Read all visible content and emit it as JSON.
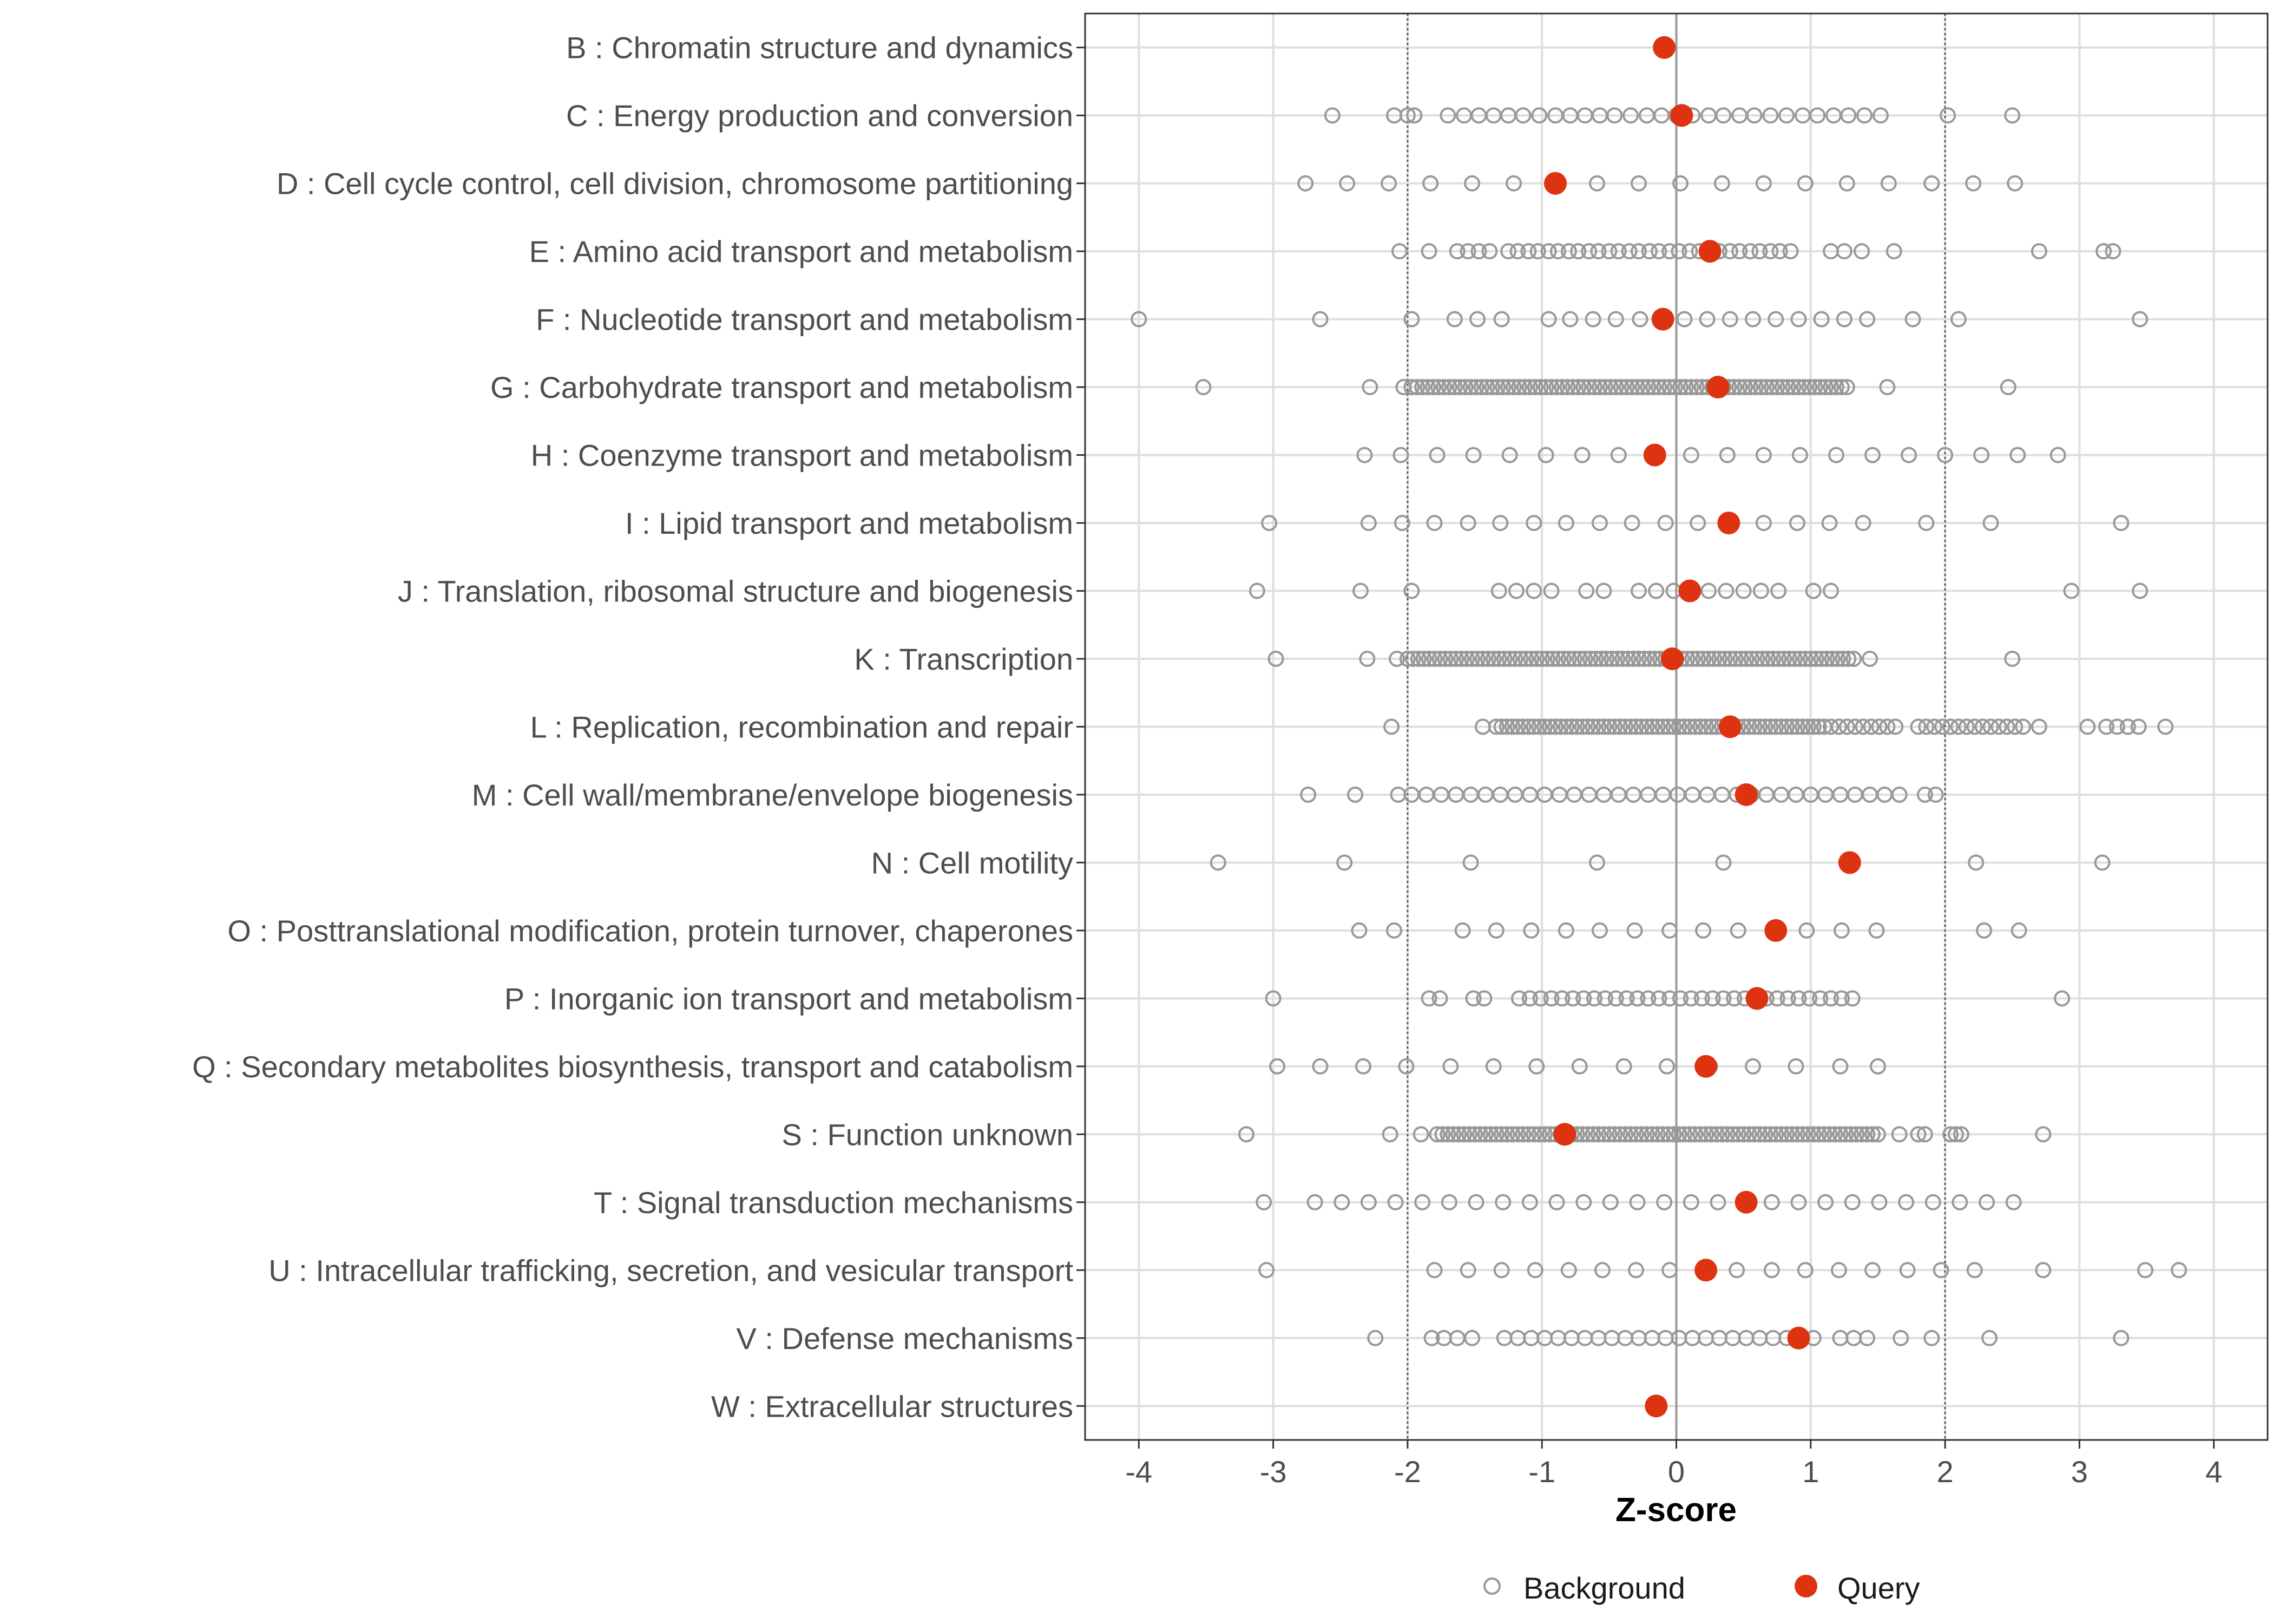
{
  "chart_data": {
    "type": "scatter",
    "xlabel": "Z-score",
    "xlim": [
      -4.4,
      4.4
    ],
    "x_ticks": [
      "-4",
      "-3",
      "-2",
      "-1",
      "0",
      "1",
      "2",
      "3",
      "4"
    ],
    "reference_lines": [
      -2,
      0,
      2
    ],
    "legend": {
      "position": "bottom",
      "entries": [
        {
          "name": "Background",
          "marker": "hollow-circle"
        },
        {
          "name": "Query",
          "marker": "filled-circle"
        }
      ]
    },
    "colors": {
      "background": "#999999",
      "query": "#dd3311",
      "grid": "#dedede",
      "zero_line": "#999999"
    },
    "categories": [
      {
        "label": "B : Chromatin structure and dynamics",
        "query": -0.09,
        "background": []
      },
      {
        "label": "C : Energy production and conversion",
        "query": 0.04,
        "background": [
          -2.56,
          -2.1,
          -2.0,
          -1.95,
          -1.7,
          -1.58,
          -1.47,
          -1.36,
          -1.25,
          -1.14,
          -1.02,
          -0.9,
          -0.79,
          -0.68,
          -0.57,
          -0.46,
          -0.34,
          -0.22,
          -0.11,
          0.0,
          0.12,
          0.24,
          0.35,
          0.47,
          0.58,
          0.7,
          0.82,
          0.94,
          1.05,
          1.17,
          1.28,
          1.4,
          1.52,
          2.02,
          2.5
        ]
      },
      {
        "label": "D : Cell cycle control, cell division, chromosome partitioning",
        "query": -0.9,
        "background": [
          -2.76,
          -2.45,
          -2.14,
          -1.83,
          -1.52,
          -1.21,
          -0.9,
          -0.59,
          -0.28,
          0.03,
          0.34,
          0.65,
          0.96,
          1.27,
          1.58,
          1.9,
          2.21,
          2.52
        ]
      },
      {
        "label": "E : Amino acid transport and metabolism",
        "query": 0.25,
        "background": [
          -2.06,
          -1.84,
          -1.63,
          -1.55,
          -1.47,
          -1.39,
          -1.25,
          -1.18,
          -1.1,
          -1.03,
          -0.95,
          -0.88,
          -0.8,
          -0.73,
          -0.65,
          -0.58,
          -0.5,
          -0.43,
          -0.35,
          -0.28,
          -0.2,
          -0.13,
          -0.05,
          0.02,
          0.1,
          0.17,
          0.25,
          0.32,
          0.4,
          0.47,
          0.55,
          0.62,
          0.7,
          0.77,
          0.85,
          1.15,
          1.25,
          1.38,
          1.62,
          2.7,
          3.18,
          3.25
        ]
      },
      {
        "label": "F : Nucleotide transport and metabolism",
        "query": -0.1,
        "background": [
          -4.0,
          -2.65,
          -1.97,
          -1.65,
          -1.48,
          -1.3,
          -0.95,
          -0.79,
          -0.62,
          -0.45,
          -0.27,
          -0.1,
          0.06,
          0.23,
          0.4,
          0.57,
          0.74,
          0.91,
          1.08,
          1.25,
          1.42,
          1.76,
          2.1,
          3.45
        ]
      },
      {
        "label": "G : Carbohydrate transport and metabolism",
        "query": 0.31,
        "background": [
          -3.52,
          -2.28,
          -2.03,
          -1.97,
          -1.93,
          -1.89,
          -1.85,
          -1.81,
          -1.77,
          -1.73,
          -1.69,
          -1.65,
          -1.61,
          -1.57,
          -1.53,
          -1.49,
          -1.45,
          -1.41,
          -1.37,
          -1.33,
          -1.29,
          -1.25,
          -1.21,
          -1.17,
          -1.13,
          -1.09,
          -1.05,
          -1.01,
          -0.97,
          -0.93,
          -0.89,
          -0.85,
          -0.81,
          -0.77,
          -0.73,
          -0.69,
          -0.65,
          -0.61,
          -0.57,
          -0.53,
          -0.49,
          -0.45,
          -0.41,
          -0.37,
          -0.33,
          -0.29,
          -0.25,
          -0.21,
          -0.17,
          -0.13,
          -0.09,
          -0.05,
          -0.01,
          0.03,
          0.07,
          0.11,
          0.15,
          0.19,
          0.23,
          0.27,
          0.31,
          0.35,
          0.39,
          0.43,
          0.47,
          0.51,
          0.55,
          0.59,
          0.63,
          0.67,
          0.71,
          0.75,
          0.79,
          0.83,
          0.87,
          0.91,
          0.95,
          0.99,
          1.03,
          1.07,
          1.11,
          1.15,
          1.19,
          1.23,
          1.27,
          1.57,
          2.47
        ]
      },
      {
        "label": "H : Coenzyme transport and metabolism",
        "query": -0.16,
        "background": [
          -2.32,
          -2.05,
          -1.78,
          -1.51,
          -1.24,
          -0.97,
          -0.7,
          -0.43,
          -0.16,
          0.11,
          0.38,
          0.65,
          0.92,
          1.19,
          1.46,
          1.73,
          2.0,
          2.27,
          2.54,
          2.84
        ]
      },
      {
        "label": "I : Lipid transport and metabolism",
        "query": 0.39,
        "background": [
          -3.03,
          -2.29,
          -2.04,
          -1.8,
          -1.55,
          -1.31,
          -1.06,
          -0.82,
          -0.57,
          -0.33,
          -0.08,
          0.16,
          0.41,
          0.65,
          0.9,
          1.14,
          1.39,
          1.86,
          2.34,
          3.31
        ]
      },
      {
        "label": "J : Translation, ribosomal structure and biogenesis",
        "query": 0.1,
        "background": [
          -3.12,
          -2.35,
          -1.97,
          -1.32,
          -1.19,
          -1.06,
          -0.93,
          -0.67,
          -0.54,
          -0.28,
          -0.15,
          -0.02,
          0.11,
          0.24,
          0.37,
          0.5,
          0.63,
          0.76,
          1.02,
          1.15,
          2.94,
          3.45
        ]
      },
      {
        "label": "K : Transcription",
        "query": -0.03,
        "background": [
          -2.98,
          -2.3,
          -2.08,
          -2.0,
          -1.96,
          -1.92,
          -1.88,
          -1.84,
          -1.8,
          -1.76,
          -1.72,
          -1.68,
          -1.64,
          -1.6,
          -1.56,
          -1.52,
          -1.48,
          -1.44,
          -1.4,
          -1.36,
          -1.32,
          -1.28,
          -1.24,
          -1.2,
          -1.16,
          -1.12,
          -1.08,
          -1.04,
          -1.0,
          -0.96,
          -0.92,
          -0.88,
          -0.84,
          -0.8,
          -0.76,
          -0.72,
          -0.68,
          -0.64,
          -0.6,
          -0.56,
          -0.52,
          -0.48,
          -0.44,
          -0.4,
          -0.36,
          -0.32,
          -0.28,
          -0.24,
          -0.2,
          -0.16,
          -0.12,
          -0.08,
          -0.04,
          0.0,
          0.04,
          0.08,
          0.12,
          0.16,
          0.2,
          0.24,
          0.28,
          0.32,
          0.36,
          0.4,
          0.44,
          0.48,
          0.52,
          0.56,
          0.6,
          0.64,
          0.68,
          0.72,
          0.76,
          0.8,
          0.84,
          0.88,
          0.92,
          0.96,
          1.0,
          1.04,
          1.08,
          1.12,
          1.16,
          1.2,
          1.24,
          1.28,
          1.32,
          1.44,
          2.5
        ]
      },
      {
        "label": "L : Replication, recombination and repair",
        "query": 0.4,
        "background": [
          -2.12,
          -1.44,
          -1.34,
          -1.3,
          -1.26,
          -1.22,
          -1.18,
          -1.14,
          -1.1,
          -1.06,
          -1.02,
          -0.98,
          -0.94,
          -0.9,
          -0.86,
          -0.82,
          -0.78,
          -0.74,
          -0.7,
          -0.66,
          -0.62,
          -0.58,
          -0.54,
          -0.5,
          -0.46,
          -0.42,
          -0.38,
          -0.34,
          -0.3,
          -0.26,
          -0.22,
          -0.18,
          -0.14,
          -0.1,
          -0.06,
          -0.02,
          0.02,
          0.06,
          0.1,
          0.14,
          0.18,
          0.22,
          0.26,
          0.3,
          0.34,
          0.38,
          0.42,
          0.46,
          0.5,
          0.54,
          0.58,
          0.62,
          0.66,
          0.7,
          0.74,
          0.78,
          0.82,
          0.86,
          0.9,
          0.94,
          0.98,
          1.02,
          1.06,
          1.1,
          1.15,
          1.21,
          1.27,
          1.33,
          1.39,
          1.45,
          1.51,
          1.57,
          1.63,
          1.8,
          1.86,
          1.92,
          1.98,
          2.04,
          2.1,
          2.16,
          2.22,
          2.28,
          2.34,
          2.4,
          2.46,
          2.52,
          2.58,
          2.7,
          3.06,
          3.2,
          3.28,
          3.36,
          3.44,
          3.64
        ]
      },
      {
        "label": "M : Cell wall/membrane/envelope biogenesis",
        "query": 0.52,
        "background": [
          -2.74,
          -2.39,
          -2.07,
          -1.97,
          -1.86,
          -1.75,
          -1.64,
          -1.53,
          -1.42,
          -1.31,
          -1.2,
          -1.09,
          -0.98,
          -0.87,
          -0.76,
          -0.65,
          -0.54,
          -0.43,
          -0.32,
          -0.21,
          -0.1,
          0.01,
          0.12,
          0.23,
          0.34,
          0.45,
          0.56,
          0.67,
          0.78,
          0.89,
          1.0,
          1.11,
          1.22,
          1.33,
          1.44,
          1.55,
          1.66,
          1.85,
          1.93
        ]
      },
      {
        "label": "N : Cell motility",
        "query": 1.29,
        "background": [
          -3.41,
          -2.47,
          -1.53,
          -0.59,
          0.35,
          2.23,
          3.17
        ]
      },
      {
        "label": "O : Posttranslational modification, protein turnover, chaperones",
        "query": 0.74,
        "background": [
          -2.36,
          -2.1,
          -1.59,
          -1.34,
          -1.08,
          -0.82,
          -0.57,
          -0.31,
          -0.05,
          0.2,
          0.46,
          0.72,
          0.97,
          1.23,
          1.49,
          2.29,
          2.55
        ]
      },
      {
        "label": "P : Inorganic ion transport and metabolism",
        "query": 0.6,
        "background": [
          -3.0,
          -1.84,
          -1.76,
          -1.51,
          -1.43,
          -1.17,
          -1.09,
          -1.01,
          -0.93,
          -0.85,
          -0.77,
          -0.69,
          -0.61,
          -0.53,
          -0.45,
          -0.37,
          -0.29,
          -0.21,
          -0.13,
          -0.05,
          0.03,
          0.11,
          0.19,
          0.27,
          0.35,
          0.43,
          0.51,
          0.59,
          0.67,
          0.75,
          0.83,
          0.91,
          0.99,
          1.07,
          1.15,
          1.23,
          1.31,
          2.87
        ]
      },
      {
        "label": "Q : Secondary metabolites biosynthesis, transport and catabolism",
        "query": 0.22,
        "background": [
          -2.97,
          -2.65,
          -2.33,
          -2.01,
          -1.68,
          -1.36,
          -1.04,
          -0.72,
          -0.39,
          -0.07,
          0.25,
          0.57,
          0.89,
          1.22,
          1.5
        ]
      },
      {
        "label": "S : Function unknown",
        "query": -0.83,
        "background": [
          -3.2,
          -2.13,
          -1.9,
          -1.78,
          -1.74,
          -1.7,
          -1.66,
          -1.62,
          -1.58,
          -1.54,
          -1.5,
          -1.46,
          -1.42,
          -1.38,
          -1.34,
          -1.3,
          -1.26,
          -1.22,
          -1.18,
          -1.14,
          -1.1,
          -1.06,
          -1.02,
          -0.98,
          -0.94,
          -0.9,
          -0.86,
          -0.82,
          -0.78,
          -0.74,
          -0.7,
          -0.66,
          -0.62,
          -0.58,
          -0.54,
          -0.5,
          -0.46,
          -0.42,
          -0.38,
          -0.34,
          -0.3,
          -0.26,
          -0.22,
          -0.18,
          -0.14,
          -0.1,
          -0.06,
          -0.02,
          0.02,
          0.06,
          0.1,
          0.14,
          0.18,
          0.22,
          0.26,
          0.3,
          0.34,
          0.38,
          0.42,
          0.46,
          0.5,
          0.54,
          0.58,
          0.62,
          0.66,
          0.7,
          0.74,
          0.78,
          0.82,
          0.86,
          0.9,
          0.94,
          0.98,
          1.02,
          1.06,
          1.1,
          1.14,
          1.18,
          1.22,
          1.26,
          1.3,
          1.34,
          1.38,
          1.42,
          1.46,
          1.5,
          1.66,
          1.8,
          1.85,
          2.04,
          2.08,
          2.12,
          2.73
        ]
      },
      {
        "label": "T : Signal transduction mechanisms",
        "query": 0.52,
        "background": [
          -3.07,
          -2.69,
          -2.49,
          -2.29,
          -2.09,
          -1.89,
          -1.69,
          -1.49,
          -1.29,
          -1.09,
          -0.89,
          -0.69,
          -0.49,
          -0.29,
          -0.09,
          0.11,
          0.31,
          0.51,
          0.71,
          0.91,
          1.11,
          1.31,
          1.51,
          1.71,
          1.91,
          2.11,
          2.31,
          2.51
        ]
      },
      {
        "label": "U : Intracellular trafficking, secretion, and vesicular transport",
        "query": 0.22,
        "background": [
          -3.05,
          -1.8,
          -1.55,
          -1.3,
          -1.05,
          -0.8,
          -0.55,
          -0.3,
          -0.05,
          0.2,
          0.45,
          0.71,
          0.96,
          1.21,
          1.46,
          1.72,
          1.97,
          2.22,
          2.73,
          3.49,
          3.74
        ]
      },
      {
        "label": "V : Defense mechanisms",
        "query": 0.91,
        "background": [
          -2.24,
          -1.82,
          -1.73,
          -1.63,
          -1.52,
          -1.28,
          -1.18,
          -1.08,
          -0.98,
          -0.88,
          -0.78,
          -0.68,
          -0.58,
          -0.48,
          -0.38,
          -0.28,
          -0.18,
          -0.08,
          0.02,
          0.12,
          0.22,
          0.32,
          0.42,
          0.52,
          0.62,
          0.72,
          0.82,
          1.02,
          1.22,
          1.32,
          1.42,
          1.67,
          1.9,
          2.33,
          3.31
        ]
      },
      {
        "label": "W : Extracellular structures",
        "query": -0.15,
        "background": []
      }
    ]
  }
}
